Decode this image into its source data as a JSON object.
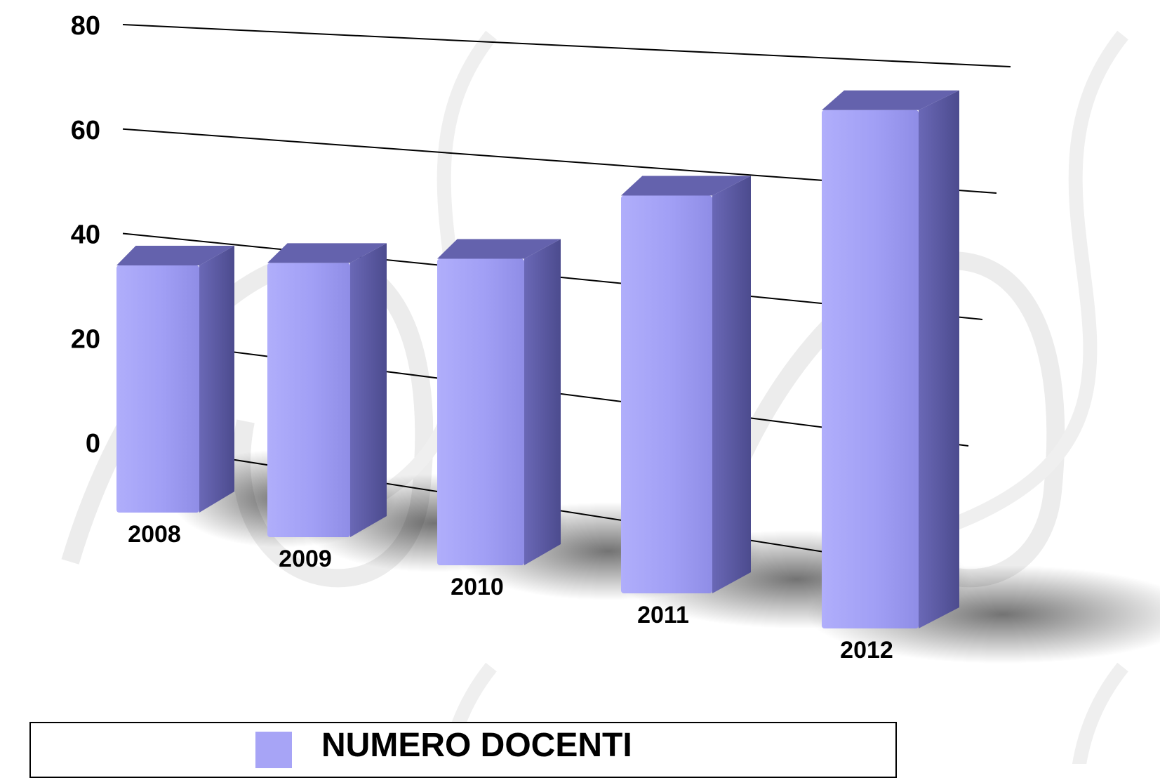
{
  "chart_data": {
    "type": "bar",
    "categories": [
      "2008",
      "2009",
      "2010",
      "2011",
      "2012"
    ],
    "series": [
      {
        "name": "NUMERO DOCENTI",
        "values": [
          40,
          42,
          45,
          55,
          69
        ],
        "color": "#a7a4f6"
      }
    ],
    "ylim": [
      0,
      80
    ],
    "yticks": [
      "0",
      "20",
      "40",
      "60",
      "80"
    ],
    "grid": true,
    "legend_position": "bottom",
    "colors": {
      "bar_front": "#a7a4f6",
      "bar_side": "#5d5ca8",
      "bar_top": "#6462ad",
      "grid": "#000000"
    }
  }
}
